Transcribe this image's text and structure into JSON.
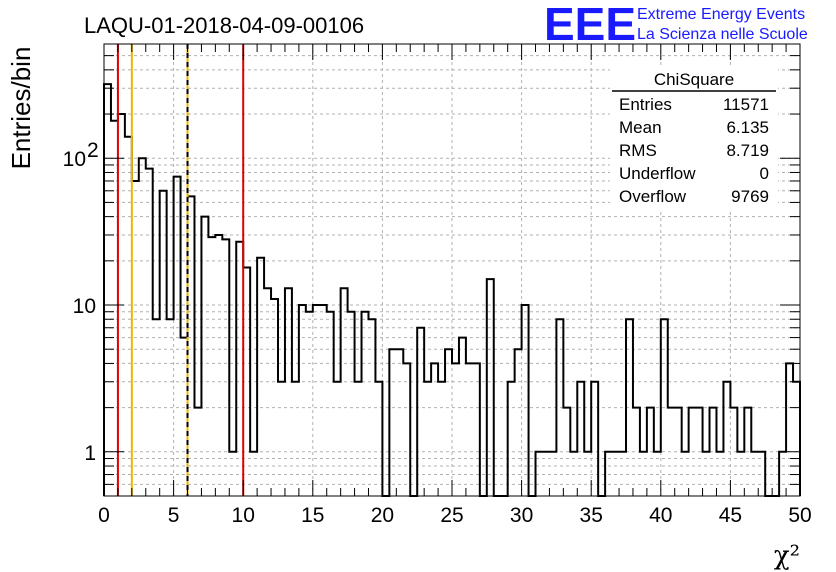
{
  "chart_data": {
    "type": "histogram",
    "title": "LAQU-01-2018-04-09-00106",
    "xlabel": "χ²",
    "ylabel": "Entries/bin",
    "xlim": [
      0,
      50
    ],
    "ylim": [
      0.5,
      600
    ],
    "yscale": "log",
    "grid": true,
    "bin_width": 0.5,
    "x_ticks": [
      0,
      5,
      10,
      15,
      20,
      25,
      30,
      35,
      40,
      45,
      50
    ],
    "y_ticks": [
      {
        "value": 1,
        "label": "1"
      },
      {
        "value": 10,
        "label": "10"
      },
      {
        "value": 100,
        "label": "10",
        "sup": "2"
      }
    ],
    "values": [
      320,
      180,
      200,
      140,
      70,
      100,
      85,
      8,
      60,
      8,
      75,
      6,
      55,
      2,
      40,
      29,
      30,
      28,
      1,
      27,
      18,
      1,
      21,
      13,
      11,
      3,
      13,
      3,
      10,
      9,
      10,
      10,
      9,
      3,
      13,
      9,
      3,
      9,
      8,
      3,
      0,
      5,
      5,
      4,
      0,
      7,
      3,
      4,
      3,
      5,
      4,
      6,
      4,
      4,
      0,
      15,
      0,
      0,
      3,
      5,
      10,
      0,
      1,
      1,
      1,
      8,
      2,
      1,
      3,
      1,
      3,
      0,
      1,
      1,
      1,
      8,
      2,
      1,
      2,
      1,
      8,
      2,
      2,
      1,
      2,
      2,
      1,
      2,
      1,
      3,
      2,
      1,
      2,
      1,
      1,
      0,
      0,
      1,
      4,
      3
    ],
    "vlines": [
      {
        "x": 1,
        "color": "#e00000",
        "style": "solid"
      },
      {
        "x": 2,
        "color": "#f0b400",
        "style": "solid"
      },
      {
        "x": 6,
        "color": "#f0b400",
        "style": "solid"
      },
      {
        "x": 6,
        "color": "#000000",
        "style": "dashed"
      },
      {
        "x": 10,
        "color": "#e00000",
        "style": "solid"
      }
    ],
    "stats_box": {
      "name": "ChiSquare",
      "rows": [
        {
          "label": "Entries",
          "value": "11571"
        },
        {
          "label": "Mean",
          "value": "6.135"
        },
        {
          "label": "RMS",
          "value": "8.719"
        },
        {
          "label": "Underflow",
          "value": "0"
        },
        {
          "label": "Overflow",
          "value": "9769"
        }
      ]
    }
  },
  "logo": {
    "mark": "EEE",
    "line1": "Extreme Energy Events",
    "line2": "La Scienza nelle Scuole"
  },
  "colors": {
    "histogram": "#000000",
    "grid": "#b0b0b0",
    "logo": "#1a1aff"
  }
}
